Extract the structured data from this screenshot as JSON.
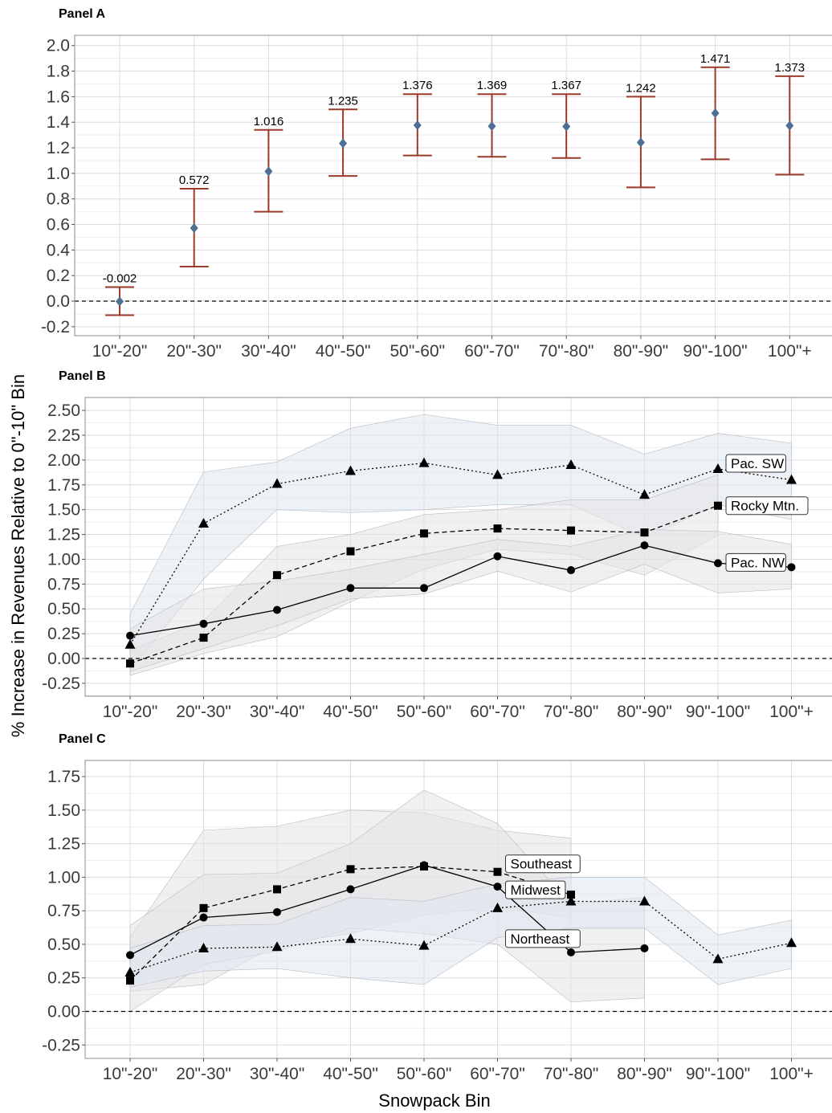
{
  "figure": {
    "ylabel": "% Increase in Revenues Relative to 0\"-10\" Bin",
    "xlabel": "Snowpack Bin"
  },
  "colors": {
    "point_a": "#4e6f93",
    "errorbar_a": "#9b3a2a",
    "band_blue": "#dfe8f1",
    "band_gray": "#e3e4e6",
    "grid": "#d9d9d9",
    "frame": "#8c8c8c"
  },
  "chart_data": [
    {
      "type": "scatter",
      "title": "Panel A",
      "categories": [
        "10\"-20\"",
        "20\"-30\"",
        "30\"-40\"",
        "40\"-50\"",
        "50\"-60\"",
        "60\"-70\"",
        "70\"-80\"",
        "80\"-90\"",
        "90\"-100\"",
        "100\"+"
      ],
      "yticks": [
        "2.0",
        "1.8",
        "1.6",
        "1.4",
        "1.2",
        "1.0",
        "0.8",
        "0.6",
        "0.4",
        "0.2",
        "0.0",
        "-0.2"
      ],
      "ylim": [
        -0.27,
        2.08
      ],
      "series": [
        {
          "values": [
            -0.002,
            0.572,
            1.016,
            1.235,
            1.376,
            1.369,
            1.367,
            1.242,
            1.471,
            1.373
          ],
          "labels": [
            "-0.002",
            "0.572",
            "1.016",
            "1.235",
            "1.376",
            "1.369",
            "1.367",
            "1.242",
            "1.471",
            "1.373"
          ],
          "lower": [
            -0.11,
            0.27,
            0.7,
            0.98,
            1.14,
            1.13,
            1.12,
            0.89,
            1.11,
            0.99
          ],
          "upper": [
            0.11,
            0.88,
            1.34,
            1.5,
            1.62,
            1.62,
            1.62,
            1.6,
            1.83,
            1.76
          ]
        }
      ],
      "reference_line": 0,
      "grid": true
    },
    {
      "type": "line",
      "title": "Panel B",
      "categories": [
        "10\"-20\"",
        "20\"-30\"",
        "30\"-40\"",
        "40\"-50\"",
        "50\"-60\"",
        "60\"-70\"",
        "70\"-80\"",
        "80\"-90\"",
        "90\"-100\"",
        "100\"+"
      ],
      "yticks": [
        "2.50",
        "2.25",
        "2.00",
        "1.75",
        "1.50",
        "1.25",
        "1.00",
        "0.75",
        "0.50",
        "0.25",
        "0.00",
        "-0.25"
      ],
      "ylim": [
        -0.38,
        2.63
      ],
      "series": [
        {
          "name": "Pac. SW",
          "marker": "triangle",
          "line": "dotted",
          "band": "blue",
          "values": [
            0.14,
            1.36,
            1.76,
            1.89,
            1.97,
            1.85,
            1.95,
            1.65,
            1.91,
            1.8
          ],
          "lower": [
            -0.12,
            0.8,
            1.5,
            1.47,
            1.5,
            1.55,
            1.55,
            1.22,
            1.55,
            1.4
          ],
          "upper": [
            0.45,
            1.88,
            1.98,
            2.32,
            2.46,
            2.35,
            2.35,
            2.06,
            2.27,
            2.17
          ]
        },
        {
          "name": "Rocky Mtn.",
          "marker": "square",
          "line": "dashed",
          "band": "gray",
          "values": [
            -0.05,
            0.21,
            0.84,
            1.08,
            1.26,
            1.31,
            1.29,
            1.27,
            1.54,
            null
          ],
          "lower": [
            -0.17,
            0.05,
            0.22,
            0.57,
            0.9,
            1.1,
            1.05,
            0.84,
            1.24,
            null
          ],
          "upper": [
            0.08,
            0.38,
            1.13,
            1.25,
            1.45,
            1.5,
            1.6,
            1.6,
            1.85,
            null
          ]
        },
        {
          "name": "Pac. NW",
          "marker": "circle",
          "line": "solid",
          "band": "gray",
          "values": [
            0.23,
            0.35,
            0.49,
            0.71,
            0.71,
            1.03,
            0.89,
            1.14,
            0.96,
            0.92
          ],
          "lower": [
            -0.13,
            0.1,
            0.33,
            0.6,
            0.65,
            0.88,
            0.67,
            0.95,
            0.66,
            0.7
          ],
          "upper": [
            0.3,
            0.7,
            0.78,
            0.9,
            1.05,
            1.2,
            1.13,
            1.3,
            1.28,
            1.15
          ]
        }
      ],
      "reference_line": 0,
      "grid": true
    },
    {
      "type": "line",
      "title": "Panel C",
      "categories": [
        "10\"-20\"",
        "20\"-30\"",
        "30\"-40\"",
        "40\"-50\"",
        "50\"-60\"",
        "60\"-70\"",
        "70\"-80\"",
        "80\"-90\"",
        "90\"-100\"",
        "100\"+"
      ],
      "yticks": [
        "1.75",
        "1.50",
        "1.25",
        "1.00",
        "0.75",
        "0.50",
        "0.25",
        "0.00",
        "-0.25"
      ],
      "ylim": [
        -0.35,
        1.87
      ],
      "series": [
        {
          "name": "Southeast",
          "marker": "square",
          "line": "dashed",
          "band": "gray",
          "values": [
            0.23,
            0.77,
            0.91,
            1.06,
            1.08,
            1.04,
            0.87,
            null,
            null,
            null
          ],
          "lower": [
            0.15,
            0.2,
            0.5,
            0.58,
            0.72,
            0.78,
            0.7,
            null,
            null,
            null
          ],
          "upper": [
            0.55,
            1.35,
            1.38,
            1.5,
            1.48,
            1.35,
            1.29,
            null,
            null,
            null
          ]
        },
        {
          "name": "Midwest",
          "marker": "circle",
          "line": "solid",
          "band": "gray",
          "values": [
            0.42,
            0.7,
            0.74,
            0.91,
            1.09,
            0.93,
            0.44,
            0.47,
            null,
            null
          ],
          "lower": [
            0.0,
            0.35,
            0.45,
            0.62,
            0.58,
            0.5,
            0.07,
            0.1,
            null,
            null
          ],
          "upper": [
            0.64,
            1.02,
            1.03,
            1.25,
            1.65,
            1.4,
            0.8,
            0.85,
            null,
            null
          ]
        },
        {
          "name": "Northeast",
          "marker": "triangle",
          "line": "dotted",
          "band": "blue",
          "values": [
            0.29,
            0.47,
            0.48,
            0.54,
            0.49,
            0.77,
            0.82,
            0.82,
            0.39,
            0.51
          ],
          "lower": [
            0.18,
            0.3,
            0.32,
            0.25,
            0.2,
            0.55,
            0.62,
            0.62,
            0.2,
            0.32
          ],
          "upper": [
            0.47,
            0.64,
            0.65,
            0.85,
            0.82,
            0.95,
            1.0,
            1.0,
            0.57,
            0.68
          ]
        }
      ],
      "reference_line": 0,
      "grid": true
    }
  ]
}
